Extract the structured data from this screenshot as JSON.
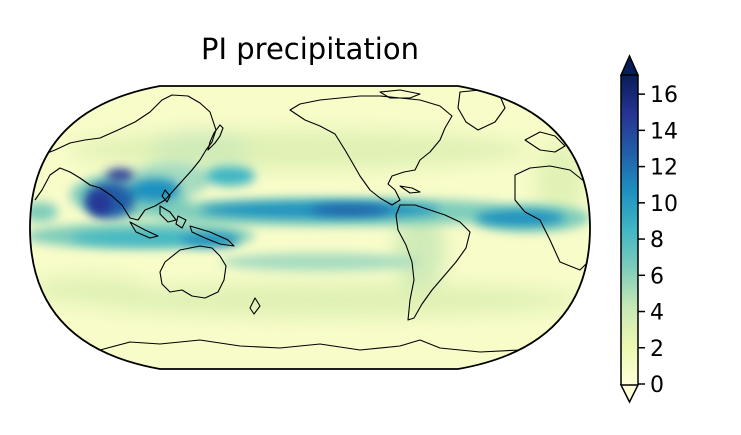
{
  "map": {
    "title": "PI precipitation",
    "projection": "Robinson",
    "central_longitude": 180,
    "field": "precipitation"
  },
  "colorbar": {
    "colormap": "YlGnBu",
    "extend": "both",
    "range": [
      0,
      17
    ],
    "ticks": [
      "0",
      "2",
      "4",
      "6",
      "8",
      "10",
      "12",
      "14",
      "16"
    ],
    "colors": [
      "#ffffd9",
      "#edf8b1",
      "#c7e9b4",
      "#7fcdbb",
      "#41b6c4",
      "#1d91c0",
      "#225ea8",
      "#253494",
      "#081d58"
    ]
  }
}
